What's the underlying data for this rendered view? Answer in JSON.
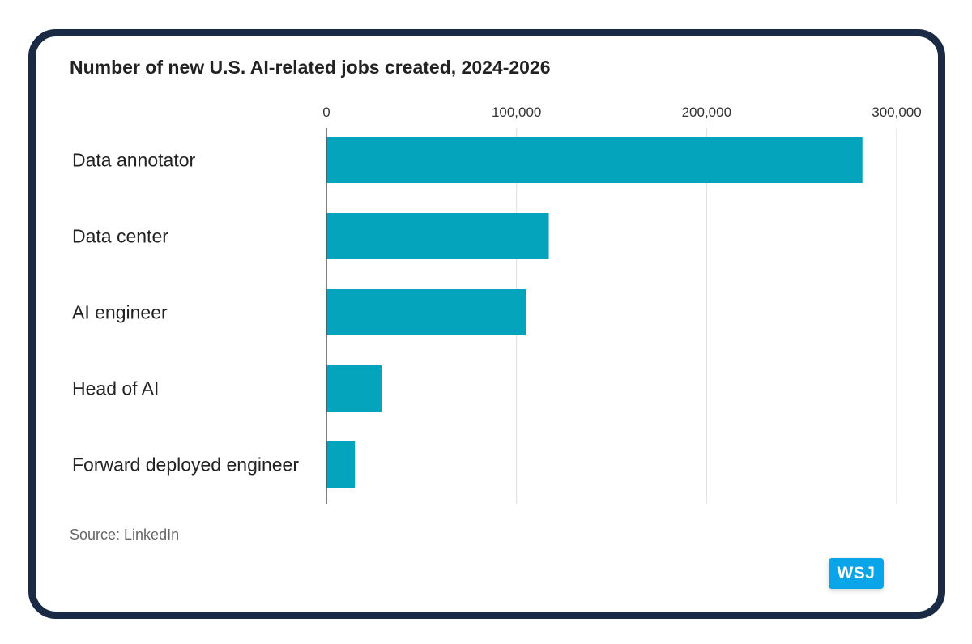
{
  "chart_data": {
    "type": "bar",
    "orientation": "horizontal",
    "title": "Number of new U.S. AI-related jobs created, 2024-2026",
    "categories": [
      "Data annotator",
      "Data center",
      "AI engineer",
      "Head of AI",
      "Forward deployed engineer"
    ],
    "values": [
      282000,
      117000,
      105000,
      29000,
      15000
    ],
    "xlim": [
      0,
      300000
    ],
    "x_ticks": [
      0,
      100000,
      200000,
      300000
    ],
    "x_tick_labels": [
      "0",
      "100,000",
      "200,000",
      "300,000"
    ],
    "tick_position": "top",
    "grid": "vertical",
    "bar_color": "#05a4bd",
    "grid_color": "#dddddd",
    "axis_color": "#555555",
    "source": "Source: LinkedIn"
  },
  "logo": {
    "text": "WSJ",
    "color": "#0aa4e8"
  }
}
